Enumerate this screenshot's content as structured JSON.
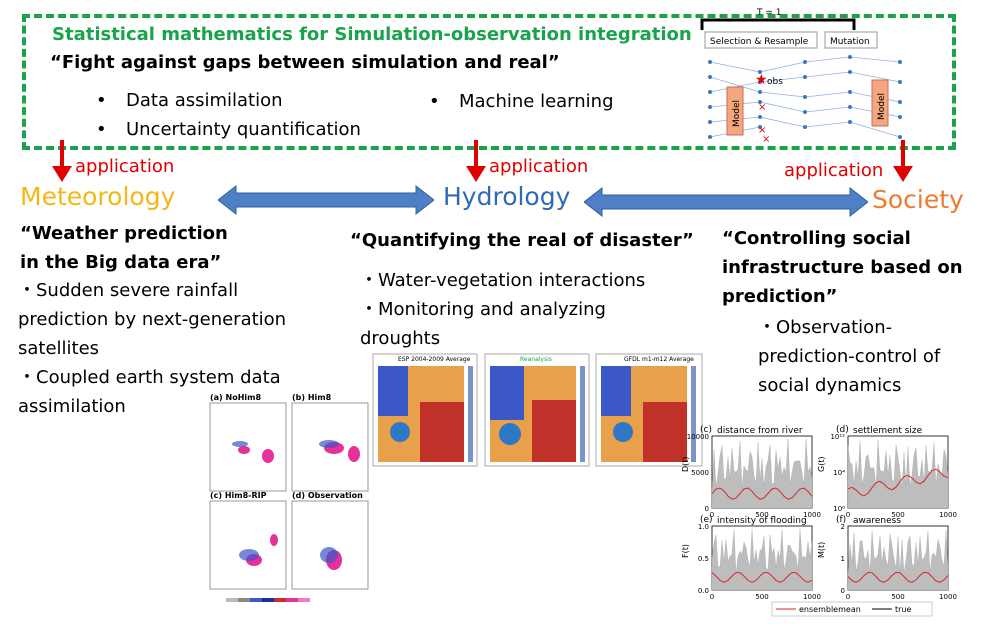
{
  "box": {
    "title": "Statistical mathematics for Simulation-observation integration",
    "subtitle": "“Fight against gaps between simulation and real”",
    "bullets": [
      "Data assimilation",
      "Uncertainty quantification",
      "Machine learning"
    ]
  },
  "schematic": {
    "t_label": "T = 1",
    "selection": "Selection & Resample",
    "mutation": "Mutation",
    "obs": "obs",
    "model": "Model"
  },
  "application_label": "application",
  "fields": {
    "meteorology": "Meteorology",
    "hydrology": "Hydrology",
    "society": "Society"
  },
  "colors": {
    "dash": "#1aa34a",
    "meteorology": "#f2b817",
    "hydrology": "#2e6bb5",
    "society": "#ee7b30",
    "arrow": "#4e7fc7",
    "red": "#e00000"
  },
  "meteorology": {
    "quote": [
      "“Weather prediction",
      "in the Big data era”"
    ],
    "items": [
      "・Sudden severe rainfall",
      "prediction by next-generation",
      "satellites",
      "・Coupled earth system data",
      "assimilation"
    ]
  },
  "hydrology": {
    "quote": "“Quantifying the real of disaster”",
    "items": [
      "・Water-vegetation interactions",
      "・Monitoring and analyzing",
      "droughts"
    ]
  },
  "society": {
    "quote": [
      "“Controlling social",
      "infrastructure based on",
      "prediction”"
    ],
    "items": [
      "・Observation-",
      "prediction-control of",
      "social dynamics"
    ]
  },
  "met_panels": [
    "(a) NoHim8",
    "(b) Him8",
    "(c) Him8-RIP",
    "(d) Observation"
  ],
  "hydro_panels": [
    "ESP 2004-2009 Average",
    "Reanalysis",
    "GFDL m1-m12 Average"
  ],
  "social_plots": {
    "panels": [
      {
        "tag": "(c)",
        "title": "distance from river",
        "ylabel": "D(t)",
        "yticks": [
          "0",
          "5000",
          "10000"
        ],
        "xticks": [
          "0",
          "500",
          "1000"
        ]
      },
      {
        "tag": "(d)",
        "title": "settlement size",
        "ylabel": "G(t)",
        "yticks": [
          "10⁰",
          "10⁴",
          "10¹²"
        ],
        "xticks": [
          "0",
          "500",
          "1000"
        ]
      },
      {
        "tag": "(e)",
        "title": "intensity of flooding",
        "ylabel": "F(t)",
        "yticks": [
          "0.0",
          "0.5",
          "1.0"
        ],
        "xticks": [
          "0",
          "500",
          "1000"
        ]
      },
      {
        "tag": "(f)",
        "title": "awareness",
        "ylabel": "M(t)",
        "yticks": [
          "0",
          "1",
          "2"
        ],
        "xticks": [
          "0",
          "500",
          "1000"
        ]
      }
    ],
    "legend": [
      "ensemblemean",
      "true"
    ]
  }
}
